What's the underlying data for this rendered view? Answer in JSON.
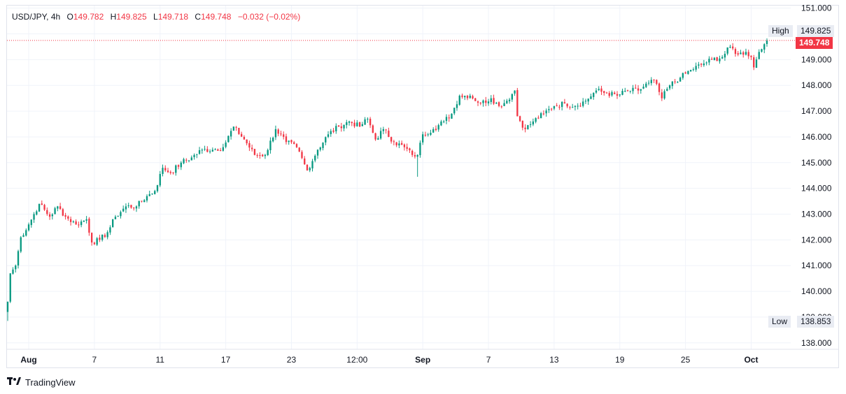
{
  "legend": {
    "symbol": "USD/JPY",
    "interval": "4h",
    "open_label": "O",
    "open": "149.782",
    "high_label": "H",
    "high": "149.825",
    "low_label": "L",
    "low": "149.718",
    "close_label": "C",
    "close": "149.748",
    "change": "−0.032 (−0.02%)"
  },
  "tags": {
    "high_label": "High",
    "high_value": "149.825",
    "low_label": "Low",
    "low_value": "138.853",
    "last_value": "149.748"
  },
  "brand": {
    "icon": "tradingview-logo-icon",
    "name": "TradingView"
  },
  "colors": {
    "up": "#089981",
    "down": "#f23645",
    "grid": "#f0f3fa",
    "axis_text": "#131722"
  },
  "chart_data": {
    "type": "candlestick",
    "title": "USD/JPY, 4h",
    "ylim": [
      137.75,
      151.1
    ],
    "y_ticks": [
      "151.000",
      "150.000",
      "149.000",
      "148.000",
      "147.000",
      "146.000",
      "145.000",
      "144.000",
      "143.000",
      "142.000",
      "141.000",
      "140.000",
      "139.000",
      "138.000"
    ],
    "x_ticks": [
      {
        "label": "Aug",
        "bar": 8,
        "bold": true
      },
      {
        "label": "7",
        "bar": 33,
        "bold": false
      },
      {
        "label": "11",
        "bar": 58,
        "bold": false
      },
      {
        "label": "17",
        "bar": 83,
        "bold": false
      },
      {
        "label": "23",
        "bar": 108,
        "bold": false
      },
      {
        "label": "12:00",
        "bar": 133,
        "bold": false
      },
      {
        "label": "Sep",
        "bar": 158,
        "bold": true
      },
      {
        "label": "7",
        "bar": 183,
        "bold": false
      },
      {
        "label": "13",
        "bar": 208,
        "bold": false
      },
      {
        "label": "19",
        "bar": 233,
        "bold": false
      },
      {
        "label": "25",
        "bar": 258,
        "bold": false
      },
      {
        "label": "Oct",
        "bar": 283,
        "bold": true
      }
    ],
    "bar_count": 290,
    "last_price": 149.748,
    "high": 149.825,
    "low": 138.853,
    "close_anchors": [
      [
        0,
        139.6
      ],
      [
        1,
        140.7
      ],
      [
        3,
        141.0
      ],
      [
        5,
        142.1
      ],
      [
        8,
        142.6
      ],
      [
        12,
        143.4
      ],
      [
        16,
        142.9
      ],
      [
        19,
        143.3
      ],
      [
        22,
        142.9
      ],
      [
        26,
        142.6
      ],
      [
        30,
        142.8
      ],
      [
        32,
        141.9
      ],
      [
        35,
        142.0
      ],
      [
        38,
        142.3
      ],
      [
        41,
        142.9
      ],
      [
        45,
        143.3
      ],
      [
        49,
        143.3
      ],
      [
        53,
        143.7
      ],
      [
        56,
        143.9
      ],
      [
        59,
        144.8
      ],
      [
        62,
        144.6
      ],
      [
        66,
        145.0
      ],
      [
        70,
        145.2
      ],
      [
        74,
        145.5
      ],
      [
        78,
        145.5
      ],
      [
        82,
        145.6
      ],
      [
        86,
        146.4
      ],
      [
        90,
        145.9
      ],
      [
        94,
        145.3
      ],
      [
        98,
        145.3
      ],
      [
        102,
        146.3
      ],
      [
        106,
        145.8
      ],
      [
        110,
        145.6
      ],
      [
        114,
        144.7
      ],
      [
        118,
        145.5
      ],
      [
        122,
        146.1
      ],
      [
        126,
        146.4
      ],
      [
        130,
        146.6
      ],
      [
        134,
        146.4
      ],
      [
        137,
        146.7
      ],
      [
        140,
        145.9
      ],
      [
        143,
        146.3
      ],
      [
        147,
        145.8
      ],
      [
        151,
        145.6
      ],
      [
        154,
        145.3
      ],
      [
        156,
        145.3
      ],
      [
        158,
        146.1
      ],
      [
        162,
        146.3
      ],
      [
        166,
        146.6
      ],
      [
        169,
        146.9
      ],
      [
        172,
        147.6
      ],
      [
        176,
        147.6
      ],
      [
        180,
        147.3
      ],
      [
        184,
        147.5
      ],
      [
        187,
        147.2
      ],
      [
        190,
        147.4
      ],
      [
        193,
        147.8
      ],
      [
        194,
        146.8
      ],
      [
        197,
        146.3
      ],
      [
        200,
        146.6
      ],
      [
        204,
        146.9
      ],
      [
        208,
        147.2
      ],
      [
        212,
        147.3
      ],
      [
        216,
        147.2
      ],
      [
        220,
        147.4
      ],
      [
        224,
        147.8
      ],
      [
        228,
        147.7
      ],
      [
        232,
        147.6
      ],
      [
        236,
        147.8
      ],
      [
        240,
        147.8
      ],
      [
        244,
        148.1
      ],
      [
        246,
        148.2
      ],
      [
        249,
        147.5
      ],
      [
        252,
        148.0
      ],
      [
        256,
        148.3
      ],
      [
        260,
        148.6
      ],
      [
        264,
        148.8
      ],
      [
        268,
        149.0
      ],
      [
        272,
        149.1
      ],
      [
        275,
        149.5
      ],
      [
        278,
        149.2
      ],
      [
        281,
        149.3
      ],
      [
        283,
        149.1
      ],
      [
        284,
        148.7
      ],
      [
        286,
        149.3
      ],
      [
        288,
        149.6
      ],
      [
        289,
        149.748
      ]
    ]
  }
}
